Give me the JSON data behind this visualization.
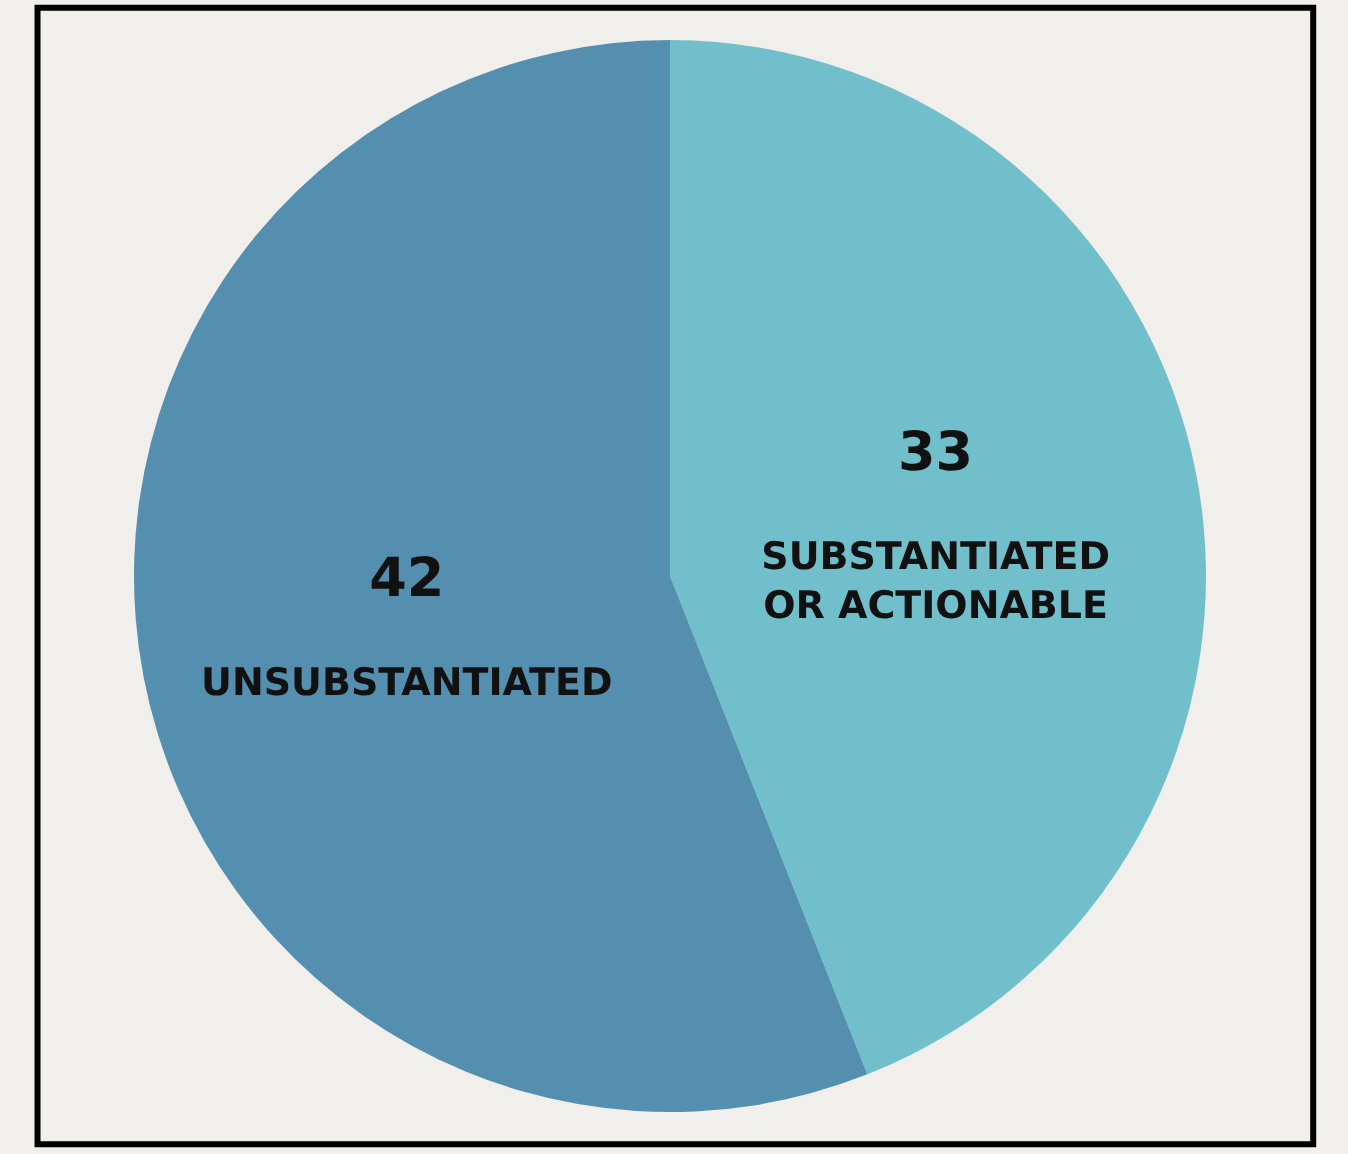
{
  "chart_data": {
    "type": "pie",
    "categories": [
      "SUBSTANTIATED OR ACTIONABLE",
      "UNSUBSTANTIATED"
    ],
    "values": [
      33,
      42
    ],
    "colors": [
      "#72bfcc",
      "#548faf"
    ],
    "data_labels": true,
    "legend": false
  }
}
